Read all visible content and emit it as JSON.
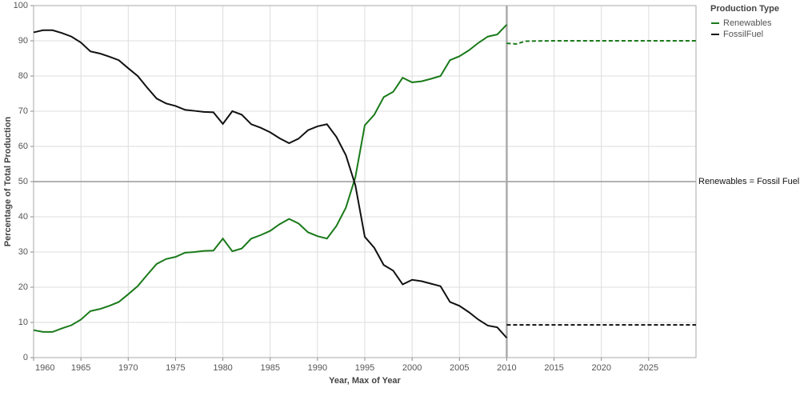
{
  "chart_data": {
    "type": "line",
    "x_label": "Year, Max of Year",
    "y_label": "Percentage of Total Production",
    "x": [
      1960,
      1961,
      1962,
      1963,
      1964,
      1965,
      1966,
      1967,
      1968,
      1969,
      1970,
      1971,
      1972,
      1973,
      1974,
      1975,
      1976,
      1977,
      1978,
      1979,
      1980,
      1981,
      1982,
      1983,
      1984,
      1985,
      1986,
      1987,
      1988,
      1989,
      1990,
      1991,
      1992,
      1993,
      1994,
      1995,
      1996,
      1997,
      1998,
      1999,
      2000,
      2001,
      2002,
      2003,
      2004,
      2005,
      2006,
      2007,
      2008,
      2009,
      2010
    ],
    "series": [
      {
        "name": "Renewables",
        "color": "#1a7a1a",
        "values": [
          7.8,
          7.3,
          7.3,
          8.3,
          9.2,
          10.8,
          13.2,
          13.8,
          14.7,
          15.8,
          18,
          20.3,
          23.5,
          26.6,
          28,
          28.6,
          29.8,
          30,
          30.3,
          30.4,
          33.8,
          30.2,
          31,
          33.8,
          34.8,
          36,
          37.9,
          39.4,
          38.1,
          35.6,
          34.5,
          33.8,
          37.4,
          42.6,
          51.2,
          66,
          69,
          74,
          75.5,
          79.5,
          78.2,
          78.5,
          79.2,
          80,
          84.5,
          85.6,
          87.3,
          89.4,
          91.2,
          91.8,
          94.6
        ],
        "projection": {
          "x": [
            2010,
            2011,
            2012,
            2015,
            2020,
            2025,
            2030
          ],
          "values": [
            89.3,
            89.1,
            89.9,
            90,
            90,
            90,
            90
          ]
        }
      },
      {
        "name": "FossilFuel",
        "color": "#111111",
        "values": [
          92.4,
          93,
          93,
          92.2,
          91.2,
          89.5,
          87,
          86.4,
          85.5,
          84.5,
          82.2,
          80,
          76.7,
          73.6,
          72.2,
          71.5,
          70.4,
          70.1,
          69.8,
          69.7,
          66.4,
          70,
          69,
          66.3,
          65.3,
          64,
          62.3,
          60.9,
          62.2,
          64.6,
          65.7,
          66.3,
          62.7,
          57.5,
          49,
          34.3,
          31.2,
          26.3,
          24.7,
          20.8,
          22.1,
          21.7,
          21,
          20.3,
          15.8,
          14.7,
          12.9,
          10.8,
          9.1,
          8.6,
          5.6
        ],
        "projection": {
          "x": [
            2010,
            2015,
            2020,
            2025,
            2030
          ],
          "values": [
            9.3,
            9.3,
            9.3,
            9.3,
            9.3
          ]
        }
      }
    ],
    "xlim": [
      1960,
      2030
    ],
    "xticks": [
      1960,
      1965,
      1970,
      1975,
      1980,
      1985,
      1990,
      1995,
      2000,
      2005,
      2010,
      2015,
      2020,
      2025
    ],
    "ylim": [
      0,
      100
    ],
    "yticks": [
      0,
      10,
      20,
      30,
      40,
      50,
      60,
      70,
      80,
      90,
      100
    ],
    "grid": true,
    "legend_title": "Production Type",
    "legend_position": "right",
    "reference_x": 2010,
    "reference_line": {
      "y": 50,
      "label": "Renewables = Fossil Fuel"
    }
  }
}
